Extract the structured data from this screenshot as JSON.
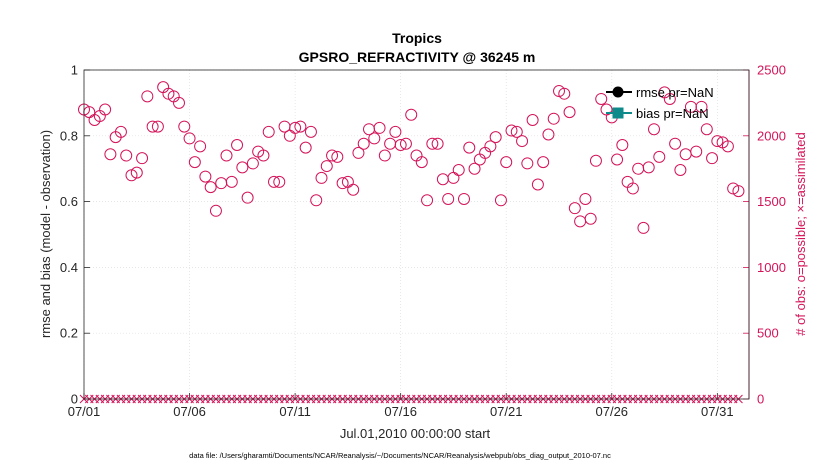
{
  "chart_data": {
    "type": "scatter",
    "title": "Tropics",
    "subtitle": "GPSRO_REFRACTIVITY @ 36245 m",
    "xlabel": "Jul.01,2010 00:00:00 start",
    "ylabel": "rmse and bias (model - observation)",
    "y2label": "# of obs: o=possible; ×=assimilated",
    "footnote": "data file: /Users/gharamti/Documents/NCAR/Reanalysis/~/Documents/NCAR/Reanalysis/webpub/obs_diag_output_2010-07.nc",
    "xlim": [
      0,
      31.5
    ],
    "ylim": [
      0,
      1
    ],
    "y2lim": [
      0,
      2500
    ],
    "xticks": [
      {
        "v": 0,
        "label": "07/01"
      },
      {
        "v": 5,
        "label": "07/06"
      },
      {
        "v": 10,
        "label": "07/11"
      },
      {
        "v": 15,
        "label": "07/16"
      },
      {
        "v": 20,
        "label": "07/21"
      },
      {
        "v": 25,
        "label": "07/26"
      },
      {
        "v": 30,
        "label": "07/31"
      }
    ],
    "yticks": [
      {
        "v": 0,
        "label": "0"
      },
      {
        "v": 0.2,
        "label": "0.2"
      },
      {
        "v": 0.4,
        "label": "0.4"
      },
      {
        "v": 0.6,
        "label": "0.6"
      },
      {
        "v": 0.8,
        "label": "0.8"
      },
      {
        "v": 1,
        "label": "1"
      }
    ],
    "y2ticks": [
      {
        "v": 0,
        "label": "0"
      },
      {
        "v": 500,
        "label": "500"
      },
      {
        "v": 1000,
        "label": "1000"
      },
      {
        "v": 1500,
        "label": "1500"
      },
      {
        "v": 2000,
        "label": "2000"
      },
      {
        "v": 2500,
        "label": "2500"
      }
    ],
    "legend": [
      {
        "name": "rmse pr=NaN",
        "color": "#000000",
        "marker": "circle"
      },
      {
        "name": "bias pr=NaN",
        "color": "#0f8a8a",
        "marker": "square"
      }
    ],
    "colors": {
      "obs": "#d4145a",
      "axis": "#262626",
      "grid": "#dedede"
    },
    "series": [
      {
        "name": "# of obs possible",
        "axis": "right",
        "marker": "circle",
        "x": [
          0.0,
          0.25,
          0.5,
          0.75,
          1.0,
          1.25,
          1.5,
          1.75,
          2.0,
          2.25,
          2.5,
          2.75,
          3.0,
          3.25,
          3.5,
          3.75,
          4.0,
          4.25,
          4.5,
          4.75,
          5.0,
          5.25,
          5.5,
          5.75,
          6.0,
          6.25,
          6.5,
          6.75,
          7.0,
          7.25,
          7.5,
          7.75,
          8.0,
          8.25,
          8.5,
          8.75,
          9.0,
          9.25,
          9.5,
          9.75,
          10.0,
          10.25,
          10.5,
          10.75,
          11.0,
          11.25,
          11.5,
          11.75,
          12.0,
          12.25,
          12.5,
          12.75,
          13.0,
          13.25,
          13.5,
          13.75,
          14.0,
          14.25,
          14.5,
          14.75,
          15.0,
          15.25,
          15.5,
          15.75,
          16.0,
          16.25,
          16.5,
          16.75,
          17.0,
          17.25,
          17.5,
          17.75,
          18.0,
          18.25,
          18.5,
          18.75,
          19.0,
          19.25,
          19.5,
          19.75,
          20.0,
          20.25,
          20.5,
          20.75,
          21.0,
          21.25,
          21.5,
          21.75,
          22.0,
          22.25,
          22.5,
          22.75,
          23.0,
          23.25,
          23.5,
          23.75,
          24.0,
          24.25,
          24.5,
          24.75,
          25.0,
          25.25,
          25.5,
          25.75,
          26.0,
          26.25,
          26.5,
          26.75,
          27.0,
          27.25,
          27.5,
          27.75,
          28.0,
          28.25,
          28.5,
          28.75,
          29.0,
          29.25,
          29.5,
          29.75,
          30.0,
          30.25,
          30.5,
          30.75,
          31.0
        ],
        "y": [
          2200,
          2180,
          2120,
          2150,
          2200,
          1860,
          1990,
          2030,
          1850,
          1700,
          1720,
          1830,
          2300,
          2070,
          2070,
          2370,
          2320,
          2300,
          2250,
          2070,
          1980,
          1800,
          1920,
          1690,
          1610,
          1430,
          1640,
          1850,
          1650,
          1930,
          1760,
          1530,
          1790,
          1880,
          1850,
          2030,
          1650,
          1650,
          2070,
          2000,
          2060,
          2070,
          1910,
          2030,
          1510,
          1680,
          1770,
          1850,
          1840,
          1640,
          1650,
          1590,
          1870,
          1940,
          2050,
          1980,
          2060,
          1850,
          1940,
          2030,
          1930,
          1940,
          2160,
          1850,
          1800,
          1510,
          1940,
          1940,
          1670,
          1520,
          1680,
          1740,
          1520,
          1910,
          1750,
          1820,
          1870,
          1920,
          1990,
          1510,
          1800,
          2040,
          2030,
          1960,
          1790,
          2120,
          1630,
          1800,
          2010,
          2130,
          2340,
          2320,
          2180,
          1450,
          1350,
          1520,
          1370,
          1810,
          2280,
          2200,
          2140,
          1820,
          1930,
          1650,
          1600,
          1750,
          1300,
          1760,
          2050,
          1840,
          2330,
          2280,
          1940,
          1740,
          1860,
          2220,
          1880,
          2220,
          2050,
          1830,
          1960,
          1950,
          1920,
          1600,
          1580
        ]
      },
      {
        "name": "# of obs assimilated",
        "axis": "right",
        "marker": "x",
        "x": [
          0.0,
          0.25,
          0.5,
          0.75,
          1.0,
          1.25,
          1.5,
          1.75,
          2.0,
          2.25,
          2.5,
          2.75,
          3.0,
          3.25,
          3.5,
          3.75,
          4.0,
          4.25,
          4.5,
          4.75,
          5.0,
          5.25,
          5.5,
          5.75,
          6.0,
          6.25,
          6.5,
          6.75,
          7.0,
          7.25,
          7.5,
          7.75,
          8.0,
          8.25,
          8.5,
          8.75,
          9.0,
          9.25,
          9.5,
          9.75,
          10.0,
          10.25,
          10.5,
          10.75,
          11.0,
          11.25,
          11.5,
          11.75,
          12.0,
          12.25,
          12.5,
          12.75,
          13.0,
          13.25,
          13.5,
          13.75,
          14.0,
          14.25,
          14.5,
          14.75,
          15.0,
          15.25,
          15.5,
          15.75,
          16.0,
          16.25,
          16.5,
          16.75,
          17.0,
          17.25,
          17.5,
          17.75,
          18.0,
          18.25,
          18.5,
          18.75,
          19.0,
          19.25,
          19.5,
          19.75,
          20.0,
          20.25,
          20.5,
          20.75,
          21.0,
          21.25,
          21.5,
          21.75,
          22.0,
          22.25,
          22.5,
          22.75,
          23.0,
          23.25,
          23.5,
          23.75,
          24.0,
          24.25,
          24.5,
          24.75,
          25.0,
          25.25,
          25.5,
          25.75,
          26.0,
          26.25,
          26.5,
          26.75,
          27.0,
          27.25,
          27.5,
          27.75,
          28.0,
          28.25,
          28.5,
          28.75,
          29.0,
          29.25,
          29.5,
          29.75,
          30.0,
          30.25,
          30.5,
          30.75,
          31.0
        ],
        "y": [
          0,
          0,
          0,
          0,
          0,
          0,
          0,
          0,
          0,
          0,
          0,
          0,
          0,
          0,
          0,
          0,
          0,
          0,
          0,
          0,
          0,
          0,
          0,
          0,
          0,
          0,
          0,
          0,
          0,
          0,
          0,
          0,
          0,
          0,
          0,
          0,
          0,
          0,
          0,
          0,
          0,
          0,
          0,
          0,
          0,
          0,
          0,
          0,
          0,
          0,
          0,
          0,
          0,
          0,
          0,
          0,
          0,
          0,
          0,
          0,
          0,
          0,
          0,
          0,
          0,
          0,
          0,
          0,
          0,
          0,
          0,
          0,
          0,
          0,
          0,
          0,
          0,
          0,
          0,
          0,
          0,
          0,
          0,
          0,
          0,
          0,
          0,
          0,
          0,
          0,
          0,
          0,
          0,
          0,
          0,
          0,
          0,
          0,
          0,
          0,
          0,
          0,
          0,
          0,
          0,
          0,
          0,
          0,
          0,
          0,
          0,
          0,
          0,
          0,
          0,
          0,
          0,
          0,
          0,
          0,
          0,
          0,
          0,
          0,
          0
        ]
      }
    ]
  }
}
